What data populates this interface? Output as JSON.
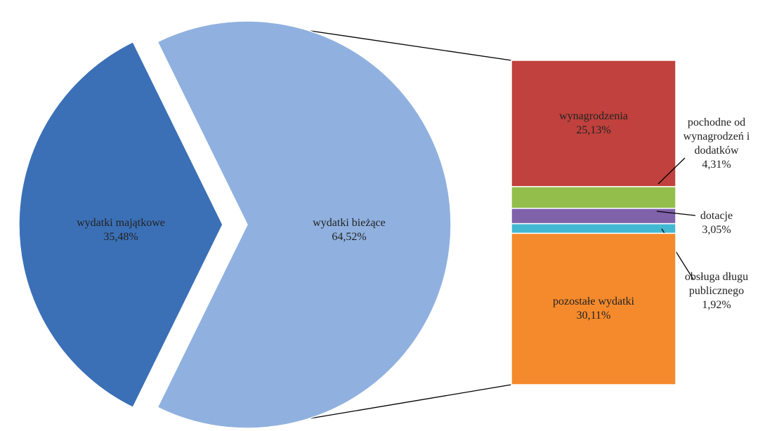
{
  "chart_data": {
    "type": "pie",
    "categories": [
      "wydatki majątkowe",
      "wydatki bieżące"
    ],
    "values": [
      35.48,
      64.52
    ],
    "value_labels": [
      "35,48%",
      "64,52%"
    ],
    "colors": [
      "#3b70b6",
      "#90b1df"
    ],
    "bar": {
      "categories": [
        "wynagrodzenia",
        "pochodne od wynagrodzeń i dodatków",
        "dotacje",
        "obsługa długu publicznego",
        "pozostałe wydatki"
      ],
      "values": [
        25.13,
        4.31,
        3.05,
        1.92,
        30.11
      ],
      "value_labels": [
        "25,13%",
        "4,31%",
        "3,05%",
        "1,92%",
        "30,11%"
      ],
      "colors": [
        "#c0413d",
        "#93be4c",
        "#8062aa",
        "#42b8d2",
        "#f58a2c"
      ]
    }
  }
}
